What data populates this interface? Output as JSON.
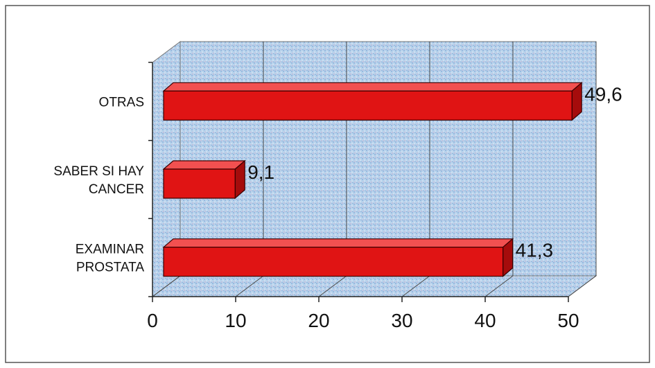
{
  "chart_data": {
    "type": "bar",
    "orientation": "horizontal",
    "style": "3d",
    "categories": [
      [
        "EXAMINAR",
        "PROSTATA"
      ],
      [
        "SABER SI HAY",
        "CANCER"
      ],
      [
        "OTRAS"
      ]
    ],
    "values": [
      41.3,
      9.1,
      49.6
    ],
    "value_labels": [
      "41,3",
      "9,1",
      "49,6"
    ],
    "title": "",
    "xlabel": "",
    "ylabel": "",
    "xlim": [
      0,
      50
    ],
    "xticks": [
      "0",
      "10",
      "20",
      "30",
      "40",
      "50"
    ],
    "grid": "vertical",
    "legend": "none",
    "bar_color": "#e01414",
    "bar_top_color": "#f25050",
    "bar_side_color": "#a50c0c",
    "background": "blue-speckled"
  }
}
